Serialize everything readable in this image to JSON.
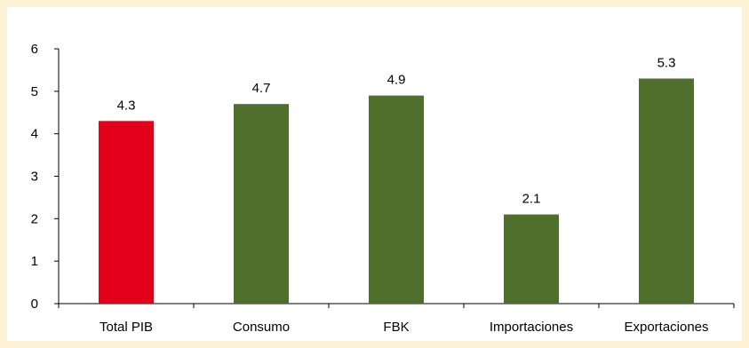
{
  "colors": {
    "background": "#fdf1d3",
    "plot_background": "#ffffff",
    "highlight_bar": "#e2001a",
    "bar": "#4f6f2d",
    "axis": "#000000"
  },
  "chart_data": {
    "type": "bar",
    "title": "",
    "xlabel": "",
    "ylabel": "",
    "categories": [
      "Total PIB",
      "Consumo",
      "FBK",
      "Importaciones",
      "Exportaciones"
    ],
    "values": [
      4.3,
      4.7,
      4.9,
      2.1,
      5.3
    ],
    "bar_colors": [
      "#e2001a",
      "#4f6f2d",
      "#4f6f2d",
      "#4f6f2d",
      "#4f6f2d"
    ],
    "data_labels": [
      "4.3",
      "4.7",
      "4.9",
      "2.1",
      "5.3"
    ],
    "ylim": [
      0,
      6
    ],
    "yticks": [
      0,
      1,
      2,
      3,
      4,
      5,
      6
    ],
    "grid": false,
    "legend": "none"
  }
}
